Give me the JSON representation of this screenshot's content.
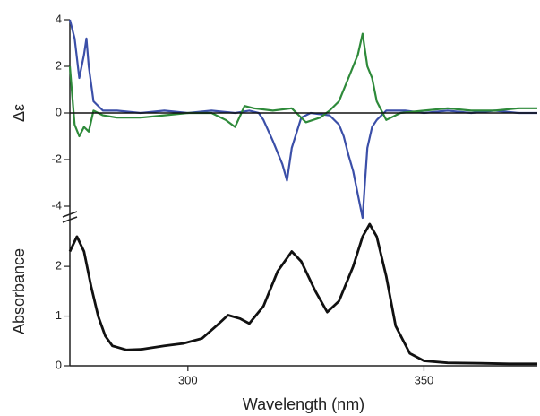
{
  "chart_data": [
    {
      "type": "line",
      "ylabel": "Δε",
      "xlim": [
        275,
        374
      ],
      "ylim": [
        -4.6,
        4
      ],
      "yticks": [
        -4,
        -2,
        0,
        2,
        4
      ],
      "hline": 0,
      "series": [
        {
          "color": "#3b4fa8",
          "x": [
            275,
            276,
            277,
            278,
            278.5,
            279,
            280,
            282,
            285,
            290,
            295,
            300,
            305,
            310,
            313,
            315,
            316,
            318,
            320,
            321,
            322,
            324,
            326,
            330,
            332,
            333,
            334,
            335,
            336,
            337,
            337.5,
            338,
            339,
            340,
            342,
            346,
            350,
            355,
            360,
            365,
            370,
            374
          ],
          "values": [
            4,
            3.2,
            1.5,
            2.5,
            3.2,
            2,
            0.5,
            0.1,
            0.1,
            0,
            0.1,
            0,
            0.1,
            0,
            0.1,
            0,
            -0.3,
            -1.2,
            -2.2,
            -2.9,
            -1.5,
            -0.2,
            0,
            -0.1,
            -0.5,
            -1,
            -1.8,
            -2.5,
            -3.5,
            -4.5,
            -3,
            -1.5,
            -0.6,
            -0.3,
            0.1,
            0.1,
            0,
            0.1,
            0,
            0.1,
            0,
            0
          ]
        },
        {
          "color": "#2e8a3a",
          "x": [
            275,
            276,
            277,
            278,
            279,
            280,
            282,
            285,
            290,
            295,
            300,
            305,
            308,
            310,
            312,
            314,
            318,
            322,
            325,
            328,
            330,
            332,
            334,
            336,
            337,
            338,
            339,
            340,
            342,
            345,
            350,
            355,
            360,
            365,
            370,
            374
          ],
          "values": [
            2,
            -0.5,
            -1,
            -0.6,
            -0.8,
            0.1,
            -0.1,
            -0.2,
            -0.2,
            -0.1,
            0,
            0,
            -0.3,
            -0.6,
            0.3,
            0.2,
            0.1,
            0.2,
            -0.4,
            -0.2,
            0.1,
            0.5,
            1.5,
            2.5,
            3.4,
            2,
            1.5,
            0.5,
            -0.3,
            0,
            0.1,
            0.2,
            0.1,
            0.1,
            0.2,
            0.2
          ]
        }
      ]
    },
    {
      "type": "line",
      "ylabel": "Absorbance",
      "xlabel": "Wavelength (nm)",
      "xlim": [
        275,
        374
      ],
      "xticks": [
        300,
        350
      ],
      "ylim": [
        0,
        2.85
      ],
      "yticks": [
        0,
        1,
        2
      ],
      "series": [
        {
          "color": "#111111",
          "x": [
            275,
            276.5,
            278,
            279.5,
            281,
            282.5,
            284,
            287,
            290,
            295,
            299,
            303,
            306,
            308.5,
            311,
            313,
            316,
            319,
            322,
            324,
            327,
            329.5,
            332,
            335,
            337,
            338.5,
            340,
            342,
            344,
            347,
            350,
            355,
            362,
            368,
            374
          ],
          "values": [
            2.3,
            2.6,
            2.3,
            1.6,
            1.0,
            0.6,
            0.4,
            0.32,
            0.33,
            0.4,
            0.45,
            0.55,
            0.8,
            1.02,
            0.95,
            0.85,
            1.2,
            1.9,
            2.3,
            2.1,
            1.5,
            1.08,
            1.3,
            2.0,
            2.6,
            2.85,
            2.6,
            1.8,
            0.8,
            0.25,
            0.1,
            0.06,
            0.05,
            0.04,
            0.04
          ]
        }
      ]
    }
  ]
}
